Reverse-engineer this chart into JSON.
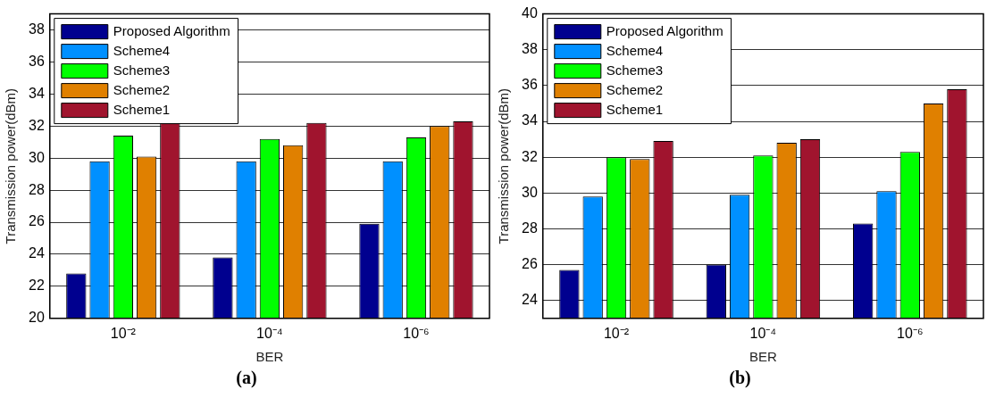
{
  "chart_data": [
    {
      "type": "bar",
      "xlabel": "BER",
      "ylabel": "Transmission power(dBm)",
      "categories": [
        "10⁻²",
        "10⁻⁴",
        "10⁻⁶"
      ],
      "series": [
        {
          "name": "Proposed Algorithm",
          "color": "#00008f",
          "values": [
            22.8,
            23.8,
            25.9
          ]
        },
        {
          "name": "Scheme4",
          "color": "#0090ff",
          "values": [
            29.8,
            29.8,
            29.8
          ]
        },
        {
          "name": "Scheme3",
          "color": "#00ff00",
          "values": [
            31.4,
            31.2,
            31.3
          ]
        },
        {
          "name": "Scheme2",
          "color": "#e08000",
          "values": [
            30.1,
            30.8,
            32.0
          ]
        },
        {
          "name": "Scheme1",
          "color": "#a0142e",
          "values": [
            32.2,
            32.2,
            32.3
          ]
        }
      ],
      "ylim": [
        20,
        39
      ],
      "yticks": [
        20,
        22,
        24,
        26,
        28,
        30,
        32,
        34,
        36,
        38
      ],
      "grid": "y",
      "legend": "top left",
      "annotations": [
        "(a)"
      ]
    },
    {
      "type": "bar",
      "xlabel": "BER",
      "ylabel": "Transmission power(dBm)",
      "categories": [
        "10⁻²",
        "10⁻⁴",
        "10⁻⁶"
      ],
      "series": [
        {
          "name": "Proposed Algorithm",
          "color": "#00008f",
          "values": [
            25.7,
            26.0,
            28.3
          ]
        },
        {
          "name": "Scheme4",
          "color": "#0090ff",
          "values": [
            29.8,
            29.9,
            30.1
          ]
        },
        {
          "name": "Scheme3",
          "color": "#00ff00",
          "values": [
            32.0,
            32.1,
            32.3
          ]
        },
        {
          "name": "Scheme2",
          "color": "#e08000",
          "values": [
            31.9,
            32.8,
            35.0
          ]
        },
        {
          "name": "Scheme1",
          "color": "#a0142e",
          "values": [
            32.9,
            33.0,
            35.8
          ]
        }
      ],
      "ylim": [
        23,
        40
      ],
      "yticks": [
        24,
        26,
        28,
        30,
        32,
        34,
        36,
        38,
        40
      ],
      "grid": "y",
      "legend": "top left",
      "annotations": [
        "(b)"
      ]
    }
  ]
}
